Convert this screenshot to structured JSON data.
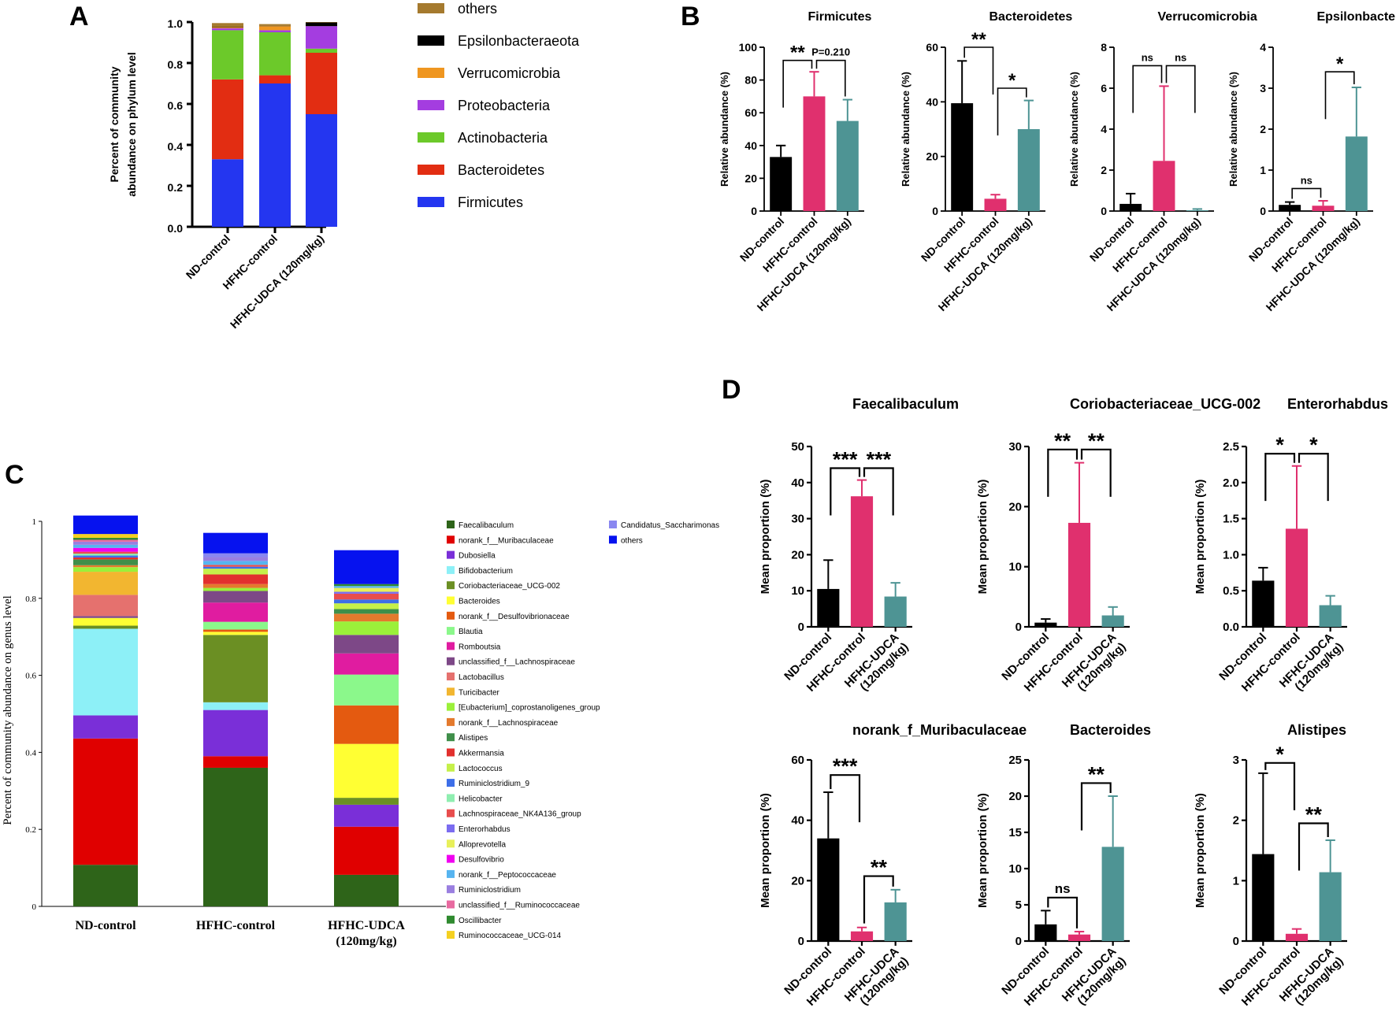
{
  "panels": {
    "A": "A",
    "B": "B",
    "C": "C",
    "D": "D"
  },
  "chart_data": [
    {
      "id": "A",
      "type": "bar",
      "stacked": true,
      "categories": [
        "ND-control",
        "HFHC-control",
        "HFHC-UDCA (120mg/kg)"
      ],
      "ylabel": "Percent of community abundance on phylum level",
      "ylim": [
        0,
        1.0
      ],
      "yticks": [
        0.0,
        0.2,
        0.4,
        0.6,
        0.8,
        1.0
      ],
      "legend_position": "right",
      "legend_order": [
        "others",
        "Epsilonbacteraeota",
        "Verrucomicrobia",
        "Proteobacteria",
        "Actinobacteria",
        "Bacteroidetes",
        "Firmicutes"
      ],
      "series": [
        {
          "name": "Firmicutes",
          "color": "#2436f0",
          "values": [
            0.33,
            0.7,
            0.55
          ]
        },
        {
          "name": "Bacteroidetes",
          "color": "#e22d12",
          "values": [
            0.39,
            0.04,
            0.3
          ]
        },
        {
          "name": "Actinobacteria",
          "color": "#6cc92a",
          "values": [
            0.24,
            0.21,
            0.02
          ]
        },
        {
          "name": "Proteobacteria",
          "color": "#a43de0",
          "values": [
            0.01,
            0.01,
            0.11
          ]
        },
        {
          "name": "Verrucomicrobia",
          "color": "#ef9620",
          "values": [
            0.005,
            0.02,
            0.0
          ]
        },
        {
          "name": "Epsilonbacteraeota",
          "color": "#000000",
          "values": [
            0.002,
            0.001,
            0.018
          ]
        },
        {
          "name": "others",
          "color": "#a57a2e",
          "values": [
            0.018,
            0.009,
            0.002
          ]
        }
      ]
    },
    {
      "id": "B",
      "type": "bar",
      "categories": [
        "ND-control",
        "HFHC-control",
        "HFHC-UDCA (120mg/kg)"
      ],
      "bar_colors": [
        "#000000",
        "#e0306e",
        "#4e9494"
      ],
      "ylabel": "Relative abundance (%)",
      "subplots": [
        {
          "title": "Firmicutes",
          "ylim": [
            0,
            100
          ],
          "yticks": [
            0,
            20,
            40,
            60,
            80,
            100
          ],
          "values": [
            33,
            70,
            55
          ],
          "errors": [
            7,
            15,
            13
          ],
          "annotations": [
            {
              "from": 0,
              "to": 1,
              "text": "**",
              "level": 92
            },
            {
              "from": 1,
              "to": 2,
              "text": "P=0.210",
              "level": 92
            }
          ]
        },
        {
          "title": "Bacteroidetes",
          "ylim": [
            0,
            60
          ],
          "yticks": [
            0,
            20,
            40,
            60
          ],
          "values": [
            39.5,
            4.5,
            30
          ],
          "errors": [
            15.5,
            1.5,
            10.5
          ],
          "annotations": [
            {
              "from": 0,
              "to": 1,
              "text": "**",
              "level": 60
            },
            {
              "from": 1,
              "to": 2,
              "text": "*",
              "level": 45
            }
          ]
        },
        {
          "title": "Verrucomicrobia",
          "ylim": [
            0,
            8
          ],
          "yticks": [
            0,
            2,
            4,
            6,
            8
          ],
          "values": [
            0.35,
            2.45,
            0.04
          ],
          "errors": [
            0.5,
            3.65,
            0.06
          ],
          "annotations": [
            {
              "from": 0,
              "to": 1,
              "text": "ns",
              "level": 7.1
            },
            {
              "from": 1,
              "to": 2,
              "text": "ns",
              "level": 7.1
            }
          ]
        },
        {
          "title": "Epsilonbacteraeota",
          "ylim": [
            0,
            4
          ],
          "yticks": [
            0,
            1,
            2,
            3,
            4
          ],
          "values": [
            0.15,
            0.13,
            1.82
          ],
          "errors": [
            0.07,
            0.12,
            1.2
          ],
          "annotations": [
            {
              "from": 0,
              "to": 1,
              "text": "ns",
              "level": 0.55
            },
            {
              "from": 1,
              "to": 2,
              "text": "*",
              "level": 3.4
            }
          ]
        }
      ]
    },
    {
      "id": "C",
      "type": "bar",
      "stacked": true,
      "categories": [
        "ND-control",
        "HFHC-control",
        "HFHC-UDCA\n(120mg/kg)"
      ],
      "ylabel": "Percent of community abundance on genus level",
      "ylim": [
        0,
        1
      ],
      "yticks": [
        "0",
        "0.2",
        "0.4",
        "0.6",
        "0.8",
        "1"
      ],
      "legend_position": "right",
      "series": [
        {
          "name": "Faecalibaculum",
          "color": "#2e6419",
          "values": [
            0.108,
            0.36,
            0.082
          ]
        },
        {
          "name": "norank_f__Muribaculaceae",
          "color": "#e00000",
          "values": [
            0.328,
            0.03,
            0.125
          ]
        },
        {
          "name": "Dubosiella",
          "color": "#7a2fd8",
          "values": [
            0.06,
            0.12,
            0.057
          ]
        },
        {
          "name": "Bifidobacterium",
          "color": "#8df0f7",
          "values": [
            0.225,
            0.02,
            0.0
          ]
        },
        {
          "name": "Coriobacteriaceae_UCG-002",
          "color": "#6b8f23",
          "values": [
            0.008,
            0.175,
            0.018
          ]
        },
        {
          "name": "Bacteroides",
          "color": "#ffff33",
          "values": [
            0.02,
            0.008,
            0.14
          ]
        },
        {
          "name": "norank_f__Desulfovibrionaceae",
          "color": "#e45a10",
          "values": [
            0.0,
            0.006,
            0.1
          ]
        },
        {
          "name": "Blautia",
          "color": "#8bf88b",
          "values": [
            0.0,
            0.02,
            0.08
          ]
        },
        {
          "name": "Romboutsia",
          "color": "#e01ca0",
          "values": [
            0.0,
            0.05,
            0.055
          ]
        },
        {
          "name": "unclassified_f__Lachnospiraceae",
          "color": "#7d4887",
          "values": [
            0.005,
            0.03,
            0.048
          ]
        },
        {
          "name": "Lactobacillus",
          "color": "#e5716e",
          "values": [
            0.055,
            0.0,
            0.0
          ]
        },
        {
          "name": "Turicibacter",
          "color": "#f2b630",
          "values": [
            0.06,
            0.0,
            0.0
          ]
        },
        {
          "name": "[Eubacterium]_coprostanoligenes_group",
          "color": "#9bf03a",
          "values": [
            0.012,
            0.008,
            0.035
          ]
        },
        {
          "name": "norank_f__Lachnospiraceae",
          "color": "#e47a2d",
          "values": [
            0.005,
            0.01,
            0.02
          ]
        },
        {
          "name": "Alistipes",
          "color": "#3f8f4a",
          "values": [
            0.015,
            0.0,
            0.012
          ]
        },
        {
          "name": "Akkermansia",
          "color": "#e2302e",
          "values": [
            0.005,
            0.025,
            0.0
          ]
        },
        {
          "name": "Lactococcus",
          "color": "#c5f04a",
          "values": [
            0.0,
            0.015,
            0.015
          ]
        },
        {
          "name": "Ruminiclostridium_9",
          "color": "#3d6ee8",
          "values": [
            0.005,
            0.005,
            0.01
          ]
        },
        {
          "name": "Helicobacter",
          "color": "#8feeb0",
          "values": [
            0.005,
            0.0,
            0.0
          ]
        },
        {
          "name": "Lachnospiraceae_NK4A136_group",
          "color": "#e84d4d",
          "values": [
            0.005,
            0.005,
            0.015
          ]
        },
        {
          "name": "Enterorhabdus",
          "color": "#7b6cf0",
          "values": [
            0.0,
            0.0,
            0.005
          ]
        },
        {
          "name": "Alloprevotella",
          "color": "#e8f05a",
          "values": [
            0.0,
            0.0,
            0.01
          ]
        },
        {
          "name": "Desulfovibrio",
          "color": "#f000f0",
          "values": [
            0.01,
            0.0,
            0.0
          ]
        },
        {
          "name": "norank_f__Peptococcaceae",
          "color": "#56b4f0",
          "values": [
            0.008,
            0.01,
            0.005
          ]
        },
        {
          "name": "Ruminiclostridium",
          "color": "#9a7fe0",
          "values": [
            0.008,
            0.01,
            0.0
          ]
        },
        {
          "name": "unclassified_f__Ruminococcaceae",
          "color": "#e86aa0",
          "values": [
            0.005,
            0.0,
            0.0
          ]
        },
        {
          "name": "Oscillibacter",
          "color": "#2f8a2f",
          "values": [
            0.005,
            0.0,
            0.005
          ]
        },
        {
          "name": "Ruminococcaceae_UCG-014",
          "color": "#f5d020",
          "values": [
            0.01,
            0.0,
            0.0
          ]
        },
        {
          "name": "Candidatus_Saccharimonas",
          "color": "#8a87f0",
          "values": [
            0.0,
            0.01,
            0.0
          ]
        },
        {
          "name": "others",
          "color": "#0612ef",
          "values": [
            0.048,
            0.053,
            0.088
          ]
        }
      ]
    },
    {
      "id": "D",
      "type": "bar",
      "categories": [
        "ND-control",
        "HFHC-control",
        "HFHC-UDCA\n(120mg/kg)"
      ],
      "bar_colors": [
        "#000000",
        "#e0306e",
        "#4e9494"
      ],
      "ylabel": "Mean proportion (%)",
      "subplots": [
        {
          "title": "Faecalibaculum",
          "ylim": [
            0,
            50
          ],
          "yticks": [
            0,
            10,
            20,
            30,
            40,
            50
          ],
          "values": [
            10.5,
            36.2,
            8.4
          ],
          "errors": [
            8,
            4.5,
            3.8
          ],
          "annotations": [
            {
              "from": 0,
              "to": 1,
              "text": "***",
              "level": 44
            },
            {
              "from": 1,
              "to": 2,
              "text": "***",
              "level": 44
            }
          ]
        },
        {
          "title": "Coriobacteriaceae_UCG-002",
          "ylim": [
            0,
            30
          ],
          "yticks": [
            0,
            10,
            20,
            30
          ],
          "values": [
            0.7,
            17.3,
            1.9
          ],
          "errors": [
            0.6,
            10,
            1.4
          ],
          "annotations": [
            {
              "from": 0,
              "to": 1,
              "text": "**",
              "level": 29.5
            },
            {
              "from": 1,
              "to": 2,
              "text": "**",
              "level": 29.5
            }
          ]
        },
        {
          "title": "Enterorhabdus",
          "ylim": [
            0,
            2.5
          ],
          "yticks": [
            0.0,
            0.5,
            1.0,
            1.5,
            2.0,
            2.5
          ],
          "values": [
            0.64,
            1.36,
            0.3
          ],
          "errors": [
            0.18,
            0.87,
            0.13
          ],
          "annotations": [
            {
              "from": 0,
              "to": 1,
              "text": "*",
              "level": 2.4
            },
            {
              "from": 1,
              "to": 2,
              "text": "*",
              "level": 2.4
            }
          ]
        },
        {
          "title": "norank_f_Muribaculaceae",
          "ylim": [
            0,
            60
          ],
          "yticks": [
            0,
            20,
            40,
            60
          ],
          "values": [
            34,
            3.2,
            12.8
          ],
          "errors": [
            15.3,
            1.3,
            4.2
          ],
          "annotations": [
            {
              "from": 0,
              "to": 1,
              "text": "***",
              "level": 55
            },
            {
              "from": 1,
              "to": 2,
              "text": "**",
              "level": 21.5
            }
          ]
        },
        {
          "title": "Bacteroides",
          "ylim": [
            0,
            25
          ],
          "yticks": [
            0,
            5,
            10,
            15,
            20,
            25
          ],
          "values": [
            2.3,
            0.9,
            13
          ],
          "errors": [
            1.9,
            0.4,
            7
          ],
          "annotations": [
            {
              "from": 0,
              "to": 1,
              "text": "ns",
              "level": 6
            },
            {
              "from": 1,
              "to": 2,
              "text": "**",
              "level": 21.8
            }
          ]
        },
        {
          "title": "Alistipes",
          "ylim": [
            0,
            3
          ],
          "yticks": [
            0,
            1,
            2,
            3
          ],
          "values": [
            1.44,
            0.12,
            1.14
          ],
          "errors": [
            1.34,
            0.08,
            0.53
          ],
          "annotations": [
            {
              "from": 0,
              "to": 1,
              "text": "*",
              "level": 2.95
            },
            {
              "from": 1,
              "to": 2,
              "text": "**",
              "level": 1.95
            }
          ]
        }
      ]
    }
  ]
}
